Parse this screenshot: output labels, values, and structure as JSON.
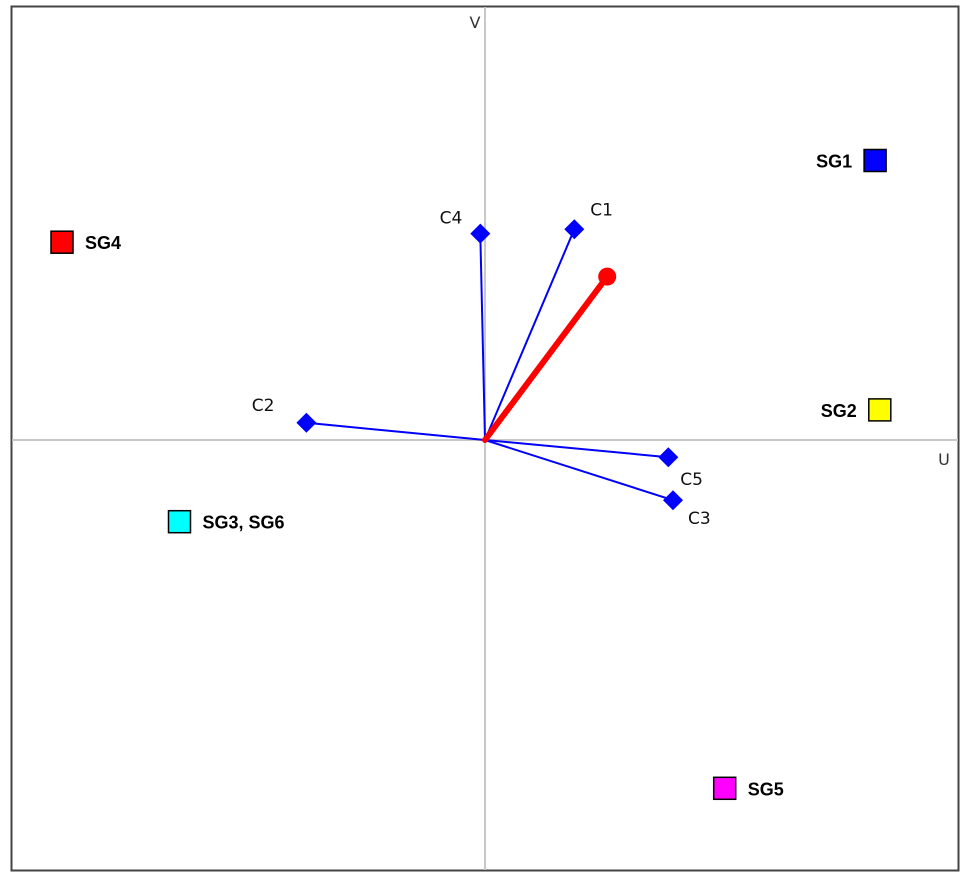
{
  "chart_data": {
    "type": "scatter",
    "title": "",
    "xlabel": "U",
    "ylabel": "V",
    "xlim": [
      -1.0,
      1.0
    ],
    "ylim": [
      -1.0,
      1.0
    ],
    "grid": false,
    "criteria": [
      {
        "label": "C1",
        "x": 0.19,
        "y": 0.49
      },
      {
        "label": "C2",
        "x": -0.38,
        "y": 0.04
      },
      {
        "label": "C3",
        "x": 0.4,
        "y": -0.14
      },
      {
        "label": "C4",
        "x": -0.01,
        "y": 0.48
      },
      {
        "label": "C5",
        "x": 0.39,
        "y": -0.04
      }
    ],
    "decision_axis": {
      "x": 0.26,
      "y": 0.38,
      "color": "#ff0000"
    },
    "alternatives": [
      {
        "label": "SG1",
        "x": 0.83,
        "y": 0.65,
        "color": "#0000ff"
      },
      {
        "label": "SG2",
        "x": 0.84,
        "y": 0.07,
        "color": "#ffff00"
      },
      {
        "label": "SG3, SG6",
        "x": -0.65,
        "y": -0.19,
        "color": "#00ffff"
      },
      {
        "label": "SG4",
        "x": -0.9,
        "y": 0.46,
        "color": "#ff0000"
      },
      {
        "label": "SG5",
        "x": 0.51,
        "y": -0.81,
        "color": "#ff00ff"
      }
    ],
    "criteria_color": "#0000ff"
  }
}
